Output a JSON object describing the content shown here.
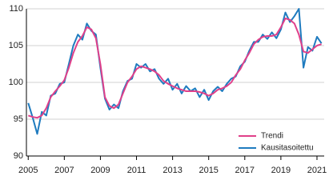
{
  "chart_data": {
    "type": "line",
    "x": [
      2005,
      2005.25,
      2005.5,
      2005.75,
      2006,
      2006.25,
      2006.5,
      2006.75,
      2007,
      2007.25,
      2007.5,
      2007.75,
      2008,
      2008.25,
      2008.5,
      2008.75,
      2009,
      2009.25,
      2009.5,
      2009.75,
      2010,
      2010.25,
      2010.5,
      2010.75,
      2011,
      2011.25,
      2011.5,
      2011.75,
      2012,
      2012.25,
      2012.5,
      2012.75,
      2013,
      2013.25,
      2013.5,
      2013.75,
      2014,
      2014.25,
      2014.5,
      2014.75,
      2015,
      2015.25,
      2015.5,
      2015.75,
      2016,
      2016.25,
      2016.5,
      2016.75,
      2017,
      2017.25,
      2017.5,
      2017.75,
      2018,
      2018.25,
      2018.5,
      2018.75,
      2019,
      2019.25,
      2019.5,
      2019.75,
      2020,
      2020.25,
      2020.5,
      2020.75,
      2021,
      2021.25
    ],
    "series": [
      {
        "name": "Trendi",
        "color": "#e0408a",
        "values": [
          95.5,
          95.3,
          95.2,
          95.5,
          96.5,
          98.0,
          98.8,
          99.5,
          100.3,
          102.0,
          104.0,
          105.5,
          106.3,
          107.5,
          107.2,
          106.0,
          102.5,
          98.0,
          96.8,
          96.5,
          97.0,
          98.5,
          100.0,
          100.8,
          101.8,
          102.2,
          102.0,
          101.8,
          101.5,
          101.0,
          100.2,
          99.8,
          99.5,
          99.2,
          99.0,
          98.8,
          98.8,
          98.8,
          98.7,
          98.5,
          98.2,
          98.5,
          99.0,
          99.2,
          99.5,
          100.0,
          101.0,
          101.8,
          103.0,
          104.0,
          105.2,
          105.8,
          106.2,
          106.3,
          106.3,
          106.5,
          107.5,
          108.7,
          108.5,
          108.0,
          106.5,
          104.2,
          104.0,
          104.5,
          105.0,
          105.2
        ]
      },
      {
        "name": "Kausitasoitettu",
        "color": "#1f7bbf",
        "values": [
          97.2,
          95.2,
          93.0,
          96.0,
          95.5,
          98.2,
          98.5,
          99.8,
          100.0,
          102.5,
          105.0,
          106.5,
          105.8,
          108.0,
          107.0,
          106.5,
          102.0,
          97.8,
          96.3,
          97.0,
          96.5,
          98.8,
          100.2,
          100.5,
          102.5,
          102.0,
          102.5,
          101.5,
          101.8,
          100.5,
          99.8,
          100.5,
          99.0,
          99.8,
          98.5,
          99.5,
          98.8,
          99.2,
          98.0,
          99.0,
          97.6,
          98.8,
          99.4,
          98.8,
          99.8,
          100.5,
          100.8,
          102.2,
          102.8,
          104.3,
          105.5,
          105.5,
          106.5,
          105.9,
          106.8,
          106.0,
          107.2,
          109.5,
          108.2,
          109.0,
          110.0,
          102.0,
          104.8,
          104.3,
          106.2,
          105.3
        ]
      }
    ],
    "xlim": [
      2004.9,
      2021.4
    ],
    "xticks": [
      2005,
      2007,
      2009,
      2011,
      2013,
      2015,
      2017,
      2019,
      2021
    ],
    "ylim": [
      90,
      110
    ],
    "yticks": [
      90,
      95,
      100,
      105,
      110
    ],
    "grid": true,
    "legend": "lower right"
  }
}
